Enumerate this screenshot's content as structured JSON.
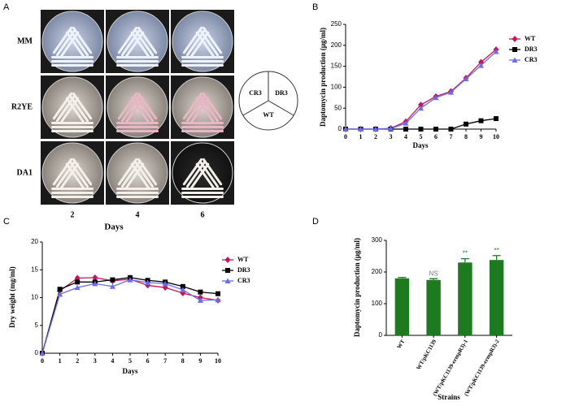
{
  "panel_a": {
    "label": "A",
    "rows": [
      "MM",
      "R2YE",
      "DA1"
    ],
    "columns": [
      "2",
      "4",
      "6"
    ],
    "xlabel": "Days",
    "sectors": [
      "CR3",
      "DR3",
      "WT"
    ]
  },
  "chart_data": [
    {
      "type": "line",
      "panel": "B",
      "xlabel": "Days",
      "ylabel": "Daptomycin production (μg/ml)",
      "x": [
        0,
        1,
        2,
        3,
        4,
        5,
        6,
        7,
        8,
        9,
        10
      ],
      "xlim": [
        0,
        10
      ],
      "xticks": [
        0,
        1,
        2,
        3,
        4,
        5,
        6,
        7,
        8,
        9,
        10
      ],
      "ylim": [
        0,
        250
      ],
      "yticks": [
        0,
        50,
        100,
        150,
        200,
        250
      ],
      "series": [
        {
          "name": "WT",
          "color": "#c2185b",
          "marker": "diamond",
          "values": [
            0,
            0,
            0,
            2,
            18,
            58,
            78,
            90,
            122,
            160,
            190
          ]
        },
        {
          "name": "DR3",
          "color": "#000000",
          "marker": "square",
          "values": [
            0,
            0,
            0,
            0,
            0,
            0,
            0,
            0,
            12,
            20,
            25
          ]
        },
        {
          "name": "CR3",
          "color": "#6b6bf0",
          "marker": "triangle",
          "values": [
            0,
            0,
            0,
            1,
            14,
            50,
            75,
            88,
            120,
            152,
            185
          ]
        }
      ]
    },
    {
      "type": "line",
      "panel": "C",
      "xlabel": "Days",
      "ylabel": "Dry weight (mg/ml)",
      "x": [
        0,
        1,
        2,
        3,
        4,
        5,
        6,
        7,
        8,
        9,
        10
      ],
      "xlim": [
        0,
        10
      ],
      "xticks": [
        0,
        1,
        2,
        3,
        4,
        5,
        6,
        7,
        8,
        9,
        10
      ],
      "ylim": [
        0,
        20
      ],
      "yticks": [
        0,
        5,
        10,
        15,
        20
      ],
      "series": [
        {
          "name": "WT",
          "color": "#c2185b",
          "marker": "diamond",
          "values": [
            0,
            11.2,
            13.5,
            13.6,
            13.0,
            13.3,
            12.2,
            11.8,
            10.8,
            10.0,
            9.5
          ]
        },
        {
          "name": "DR3",
          "color": "#000000",
          "marker": "square",
          "values": [
            0,
            11.5,
            12.8,
            12.8,
            13.2,
            13.6,
            13.1,
            12.8,
            12.0,
            11.0,
            10.7
          ]
        },
        {
          "name": "CR3",
          "color": "#6b6bf0",
          "marker": "triangle",
          "values": [
            0,
            10.6,
            11.8,
            12.5,
            12.0,
            13.2,
            12.7,
            12.5,
            11.4,
            9.5,
            9.6
          ]
        }
      ]
    },
    {
      "type": "bar",
      "panel": "D",
      "xlabel": "Strains",
      "ylabel": "Daptomycin production (μg/ml)",
      "categories": [
        "WT",
        "WT/pKC1139",
        "(WT/pKC1139-ermpR3)-1",
        "(WT/pKC1139-ermpR3)-2"
      ],
      "values": [
        180,
        175,
        230,
        238
      ],
      "errors": [
        3,
        4,
        12,
        14
      ],
      "significance": [
        null,
        "NS",
        "**",
        "**"
      ],
      "color": "#1e7a1e",
      "ylim": [
        0,
        300
      ],
      "yticks": [
        0,
        100,
        200,
        300
      ]
    }
  ]
}
